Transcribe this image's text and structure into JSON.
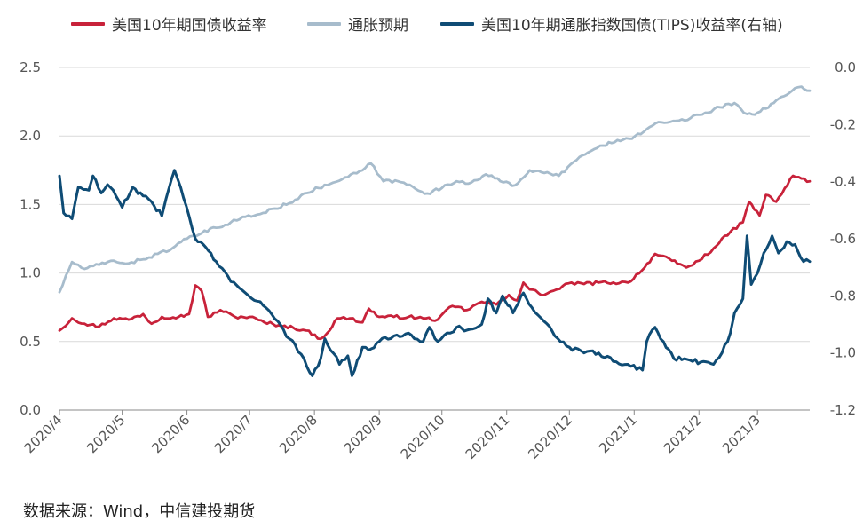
{
  "chart_data": {
    "type": "line",
    "title": "",
    "xlabel": "",
    "ylabel": "",
    "ylim": [
      0,
      2.5
    ],
    "y2lim": [
      -1.2,
      0
    ],
    "xlim": [
      "2020-04-01",
      "2021-03-26"
    ],
    "y_ticks": [
      "0.0",
      "0.5",
      "1.0",
      "1.5",
      "2.0",
      "2.5"
    ],
    "y2_ticks": [
      "-1.2",
      "-1.0",
      "-0.8",
      "-0.6",
      "-0.4",
      "-0.2",
      "0.0"
    ],
    "x_ticks": [
      "2020/4",
      "2020/5",
      "2020/6",
      "2020/7",
      "2020/8",
      "2020/9",
      "2020/10",
      "2020/11",
      "2020/12",
      "2021/1",
      "2021/2",
      "2021/3"
    ],
    "legend_position": "top",
    "series": [
      {
        "name": "美国10年期国债收益率",
        "axis": "left",
        "color": "#c8223a",
        "points": [
          [
            "2020-04-01",
            0.58
          ],
          [
            "2020-04-07",
            0.67
          ],
          [
            "2020-04-13",
            0.63
          ],
          [
            "2020-04-20",
            0.61
          ],
          [
            "2020-04-27",
            0.67
          ],
          [
            "2020-05-04",
            0.66
          ],
          [
            "2020-05-11",
            0.7
          ],
          [
            "2020-05-15",
            0.63
          ],
          [
            "2020-05-20",
            0.68
          ],
          [
            "2020-05-28",
            0.68
          ],
          [
            "2020-06-02",
            0.7
          ],
          [
            "2020-06-05",
            0.91
          ],
          [
            "2020-06-08",
            0.87
          ],
          [
            "2020-06-11",
            0.68
          ],
          [
            "2020-06-17",
            0.73
          ],
          [
            "2020-06-24",
            0.68
          ],
          [
            "2020-07-01",
            0.68
          ],
          [
            "2020-07-08",
            0.64
          ],
          [
            "2020-07-15",
            0.62
          ],
          [
            "2020-07-22",
            0.6
          ],
          [
            "2020-07-28",
            0.58
          ],
          [
            "2020-08-04",
            0.52
          ],
          [
            "2020-08-07",
            0.56
          ],
          [
            "2020-08-12",
            0.67
          ],
          [
            "2020-08-18",
            0.67
          ],
          [
            "2020-08-24",
            0.64
          ],
          [
            "2020-08-27",
            0.74
          ],
          [
            "2020-09-01",
            0.68
          ],
          [
            "2020-09-08",
            0.68
          ],
          [
            "2020-09-15",
            0.68
          ],
          [
            "2020-09-22",
            0.67
          ],
          [
            "2020-09-29",
            0.66
          ],
          [
            "2020-10-06",
            0.76
          ],
          [
            "2020-10-13",
            0.73
          ],
          [
            "2020-10-20",
            0.79
          ],
          [
            "2020-10-27",
            0.77
          ],
          [
            "2020-11-02",
            0.84
          ],
          [
            "2020-11-06",
            0.8
          ],
          [
            "2020-11-09",
            0.93
          ],
          [
            "2020-11-12",
            0.88
          ],
          [
            "2020-11-19",
            0.84
          ],
          [
            "2020-11-25",
            0.88
          ],
          [
            "2020-12-02",
            0.93
          ],
          [
            "2020-12-08",
            0.92
          ],
          [
            "2020-12-15",
            0.93
          ],
          [
            "2020-12-22",
            0.93
          ],
          [
            "2020-12-29",
            0.93
          ],
          [
            "2021-01-06",
            1.04
          ],
          [
            "2021-01-11",
            1.14
          ],
          [
            "2021-01-19",
            1.09
          ],
          [
            "2021-01-26",
            1.04
          ],
          [
            "2021-02-01",
            1.09
          ],
          [
            "2021-02-08",
            1.18
          ],
          [
            "2021-02-16",
            1.3
          ],
          [
            "2021-02-22",
            1.37
          ],
          [
            "2021-02-25",
            1.52
          ],
          [
            "2021-03-02",
            1.42
          ],
          [
            "2021-03-05",
            1.57
          ],
          [
            "2021-03-10",
            1.52
          ],
          [
            "2021-03-18",
            1.71
          ],
          [
            "2021-03-22",
            1.69
          ],
          [
            "2021-03-26",
            1.67
          ]
        ]
      },
      {
        "name": "通胀预期",
        "axis": "left",
        "color": "#a7bccc",
        "points": [
          [
            "2020-04-01",
            0.86
          ],
          [
            "2020-04-07",
            1.08
          ],
          [
            "2020-04-13",
            1.03
          ],
          [
            "2020-04-20",
            1.06
          ],
          [
            "2020-04-27",
            1.09
          ],
          [
            "2020-05-04",
            1.07
          ],
          [
            "2020-05-11",
            1.1
          ],
          [
            "2020-05-18",
            1.14
          ],
          [
            "2020-05-25",
            1.18
          ],
          [
            "2020-06-01",
            1.25
          ],
          [
            "2020-06-08",
            1.29
          ],
          [
            "2020-06-15",
            1.33
          ],
          [
            "2020-06-22",
            1.37
          ],
          [
            "2020-06-29",
            1.41
          ],
          [
            "2020-07-06",
            1.43
          ],
          [
            "2020-07-13",
            1.47
          ],
          [
            "2020-07-20",
            1.51
          ],
          [
            "2020-07-27",
            1.58
          ],
          [
            "2020-08-03",
            1.62
          ],
          [
            "2020-08-10",
            1.66
          ],
          [
            "2020-08-17",
            1.7
          ],
          [
            "2020-08-24",
            1.75
          ],
          [
            "2020-08-28",
            1.8
          ],
          [
            "2020-09-03",
            1.67
          ],
          [
            "2020-09-10",
            1.67
          ],
          [
            "2020-09-17",
            1.63
          ],
          [
            "2020-09-24",
            1.58
          ],
          [
            "2020-10-01",
            1.62
          ],
          [
            "2020-10-08",
            1.67
          ],
          [
            "2020-10-15",
            1.66
          ],
          [
            "2020-10-22",
            1.72
          ],
          [
            "2020-10-29",
            1.67
          ],
          [
            "2020-11-05",
            1.64
          ],
          [
            "2020-11-12",
            1.75
          ],
          [
            "2020-11-19",
            1.73
          ],
          [
            "2020-11-26",
            1.71
          ],
          [
            "2020-12-03",
            1.81
          ],
          [
            "2020-12-10",
            1.88
          ],
          [
            "2020-12-17",
            1.93
          ],
          [
            "2020-12-24",
            1.97
          ],
          [
            "2020-12-31",
            1.98
          ],
          [
            "2021-01-07",
            2.05
          ],
          [
            "2021-01-14",
            2.1
          ],
          [
            "2021-01-21",
            2.11
          ],
          [
            "2021-01-28",
            2.13
          ],
          [
            "2021-02-04",
            2.17
          ],
          [
            "2021-02-11",
            2.21
          ],
          [
            "2021-02-18",
            2.24
          ],
          [
            "2021-02-24",
            2.16
          ],
          [
            "2021-03-01",
            2.17
          ],
          [
            "2021-03-05",
            2.2
          ],
          [
            "2021-03-10",
            2.26
          ],
          [
            "2021-03-15",
            2.3
          ],
          [
            "2021-03-19",
            2.35
          ],
          [
            "2021-03-22",
            2.36
          ],
          [
            "2021-03-26",
            2.33
          ]
        ]
      },
      {
        "name": "美国10年期通胀指数国债(TIPS)收益率(右轴)",
        "axis": "right",
        "color": "#0f4c75",
        "points": [
          [
            "2020-04-01",
            -0.38
          ],
          [
            "2020-04-03",
            -0.51
          ],
          [
            "2020-04-07",
            -0.53
          ],
          [
            "2020-04-10",
            -0.42
          ],
          [
            "2020-04-15",
            -0.43
          ],
          [
            "2020-04-17",
            -0.38
          ],
          [
            "2020-04-21",
            -0.44
          ],
          [
            "2020-04-24",
            -0.41
          ],
          [
            "2020-04-28",
            -0.45
          ],
          [
            "2020-05-01",
            -0.49
          ],
          [
            "2020-05-06",
            -0.42
          ],
          [
            "2020-05-11",
            -0.45
          ],
          [
            "2020-05-15",
            -0.47
          ],
          [
            "2020-05-20",
            -0.52
          ],
          [
            "2020-05-22",
            -0.46
          ],
          [
            "2020-05-26",
            -0.36
          ],
          [
            "2020-05-29",
            -0.42
          ],
          [
            "2020-06-02",
            -0.52
          ],
          [
            "2020-06-05",
            -0.6
          ],
          [
            "2020-06-10",
            -0.63
          ],
          [
            "2020-06-15",
            -0.68
          ],
          [
            "2020-06-22",
            -0.75
          ],
          [
            "2020-06-29",
            -0.79
          ],
          [
            "2020-07-06",
            -0.82
          ],
          [
            "2020-07-13",
            -0.88
          ],
          [
            "2020-07-20",
            -0.95
          ],
          [
            "2020-07-27",
            -1.02
          ],
          [
            "2020-07-31",
            -1.08
          ],
          [
            "2020-08-04",
            -1.02
          ],
          [
            "2020-08-06",
            -0.95
          ],
          [
            "2020-08-10",
            -1.0
          ],
          [
            "2020-08-13",
            -1.04
          ],
          [
            "2020-08-17",
            -1.01
          ],
          [
            "2020-08-19",
            -1.08
          ],
          [
            "2020-08-24",
            -0.98
          ],
          [
            "2020-08-27",
            -0.99
          ],
          [
            "2020-09-01",
            -0.96
          ],
          [
            "2020-09-08",
            -0.94
          ],
          [
            "2020-09-15",
            -0.93
          ],
          [
            "2020-09-22",
            -0.96
          ],
          [
            "2020-09-25",
            -0.91
          ],
          [
            "2020-09-29",
            -0.96
          ],
          [
            "2020-10-05",
            -0.93
          ],
          [
            "2020-10-08",
            -0.91
          ],
          [
            "2020-10-13",
            -0.92
          ],
          [
            "2020-10-20",
            -0.9
          ],
          [
            "2020-10-23",
            -0.81
          ],
          [
            "2020-10-27",
            -0.86
          ],
          [
            "2020-10-30",
            -0.8
          ],
          [
            "2020-11-04",
            -0.86
          ],
          [
            "2020-11-09",
            -0.79
          ],
          [
            "2020-11-13",
            -0.84
          ],
          [
            "2020-11-19",
            -0.89
          ],
          [
            "2020-11-24",
            -0.94
          ],
          [
            "2020-12-01",
            -0.98
          ],
          [
            "2020-12-08",
            -1.0
          ],
          [
            "2020-12-15",
            -1.0
          ],
          [
            "2020-12-22",
            -1.03
          ],
          [
            "2020-12-29",
            -1.04
          ],
          [
            "2021-01-05",
            -1.06
          ],
          [
            "2021-01-07",
            -0.96
          ],
          [
            "2021-01-11",
            -0.91
          ],
          [
            "2021-01-15",
            -0.96
          ],
          [
            "2021-01-20",
            -1.02
          ],
          [
            "2021-01-25",
            -1.02
          ],
          [
            "2021-01-29",
            -1.03
          ],
          [
            "2021-02-03",
            -1.03
          ],
          [
            "2021-02-08",
            -1.04
          ],
          [
            "2021-02-12",
            -1.0
          ],
          [
            "2021-02-16",
            -0.93
          ],
          [
            "2021-02-18",
            -0.86
          ],
          [
            "2021-02-22",
            -0.81
          ],
          [
            "2021-02-24",
            -0.59
          ],
          [
            "2021-02-26",
            -0.76
          ],
          [
            "2021-03-01",
            -0.72
          ],
          [
            "2021-03-04",
            -0.65
          ],
          [
            "2021-03-08",
            -0.59
          ],
          [
            "2021-03-11",
            -0.65
          ],
          [
            "2021-03-15",
            -0.61
          ],
          [
            "2021-03-19",
            -0.62
          ],
          [
            "2021-03-23",
            -0.68
          ],
          [
            "2021-03-26",
            -0.68
          ]
        ]
      }
    ]
  },
  "source": "数据来源：Wind，中信建投期货"
}
